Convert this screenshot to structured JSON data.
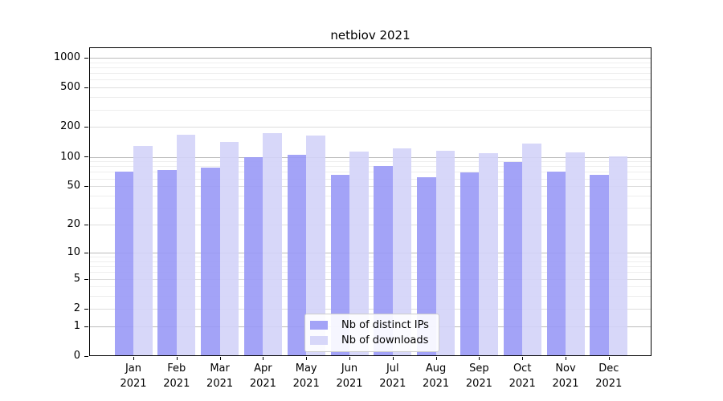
{
  "figure": {
    "title": "netbiov 2021",
    "background": "#ffffff"
  },
  "chart_data": {
    "type": "bar",
    "title": "netbiov 2021",
    "categories": [
      "Jan",
      "Feb",
      "Mar",
      "Apr",
      "May",
      "Jun",
      "Jul",
      "Aug",
      "Sep",
      "Oct",
      "Nov",
      "Dec"
    ],
    "category_year": "2021",
    "series": [
      {
        "name": "Nb of distinct IPs",
        "color": "#9999f6",
        "values": [
          71,
          74,
          77,
          99,
          104,
          65,
          80,
          62,
          69,
          89,
          71,
          66
        ]
      },
      {
        "name": "Nb of downloads",
        "color": "#d3d3f8",
        "values": [
          128,
          166,
          142,
          174,
          164,
          112,
          122,
          115,
          109,
          137,
          110,
          101
        ]
      }
    ],
    "yscale": "log1p",
    "ylim": [
      0,
      1280
    ],
    "yticks": [
      0,
      1,
      2,
      5,
      10,
      20,
      50,
      100,
      200,
      500,
      1000
    ],
    "minor_gridlines": [
      3,
      4,
      6,
      7,
      8,
      9,
      30,
      40,
      60,
      70,
      80,
      90,
      300,
      400,
      600,
      700,
      800,
      900
    ],
    "grid": true,
    "legend_position": "lower center",
    "xlabel": "",
    "ylabel": "",
    "style": {
      "grid_decade_color": "#bbbbbb",
      "grid_tick_color": "#dddddd",
      "grid_minor_color": "#eeeeee",
      "axis_color": "#000000",
      "text_color": "#000000",
      "legend_border_color": "#cccccc"
    }
  }
}
